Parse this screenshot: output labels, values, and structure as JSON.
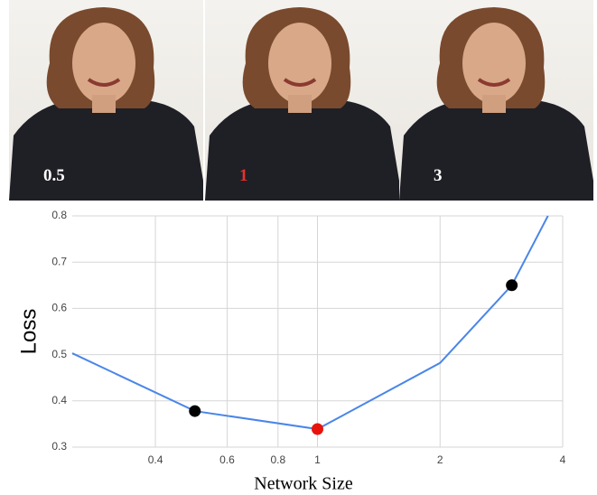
{
  "panels": [
    {
      "label": "0.5",
      "color": "#ffffff"
    },
    {
      "label": "1",
      "color": "#e8302a"
    },
    {
      "label": "3",
      "color": "#ffffff"
    }
  ],
  "chart_data": {
    "type": "line",
    "x_label": "Network Size",
    "y_label": "Loss",
    "x": [
      0.25,
      0.5,
      1,
      2,
      3,
      3.68
    ],
    "values": [
      0.503,
      0.378,
      0.339,
      0.482,
      0.65,
      0.8
    ],
    "color": "#4a86e8",
    "markers": {
      "x": [
        0.5,
        1,
        3
      ],
      "values": [
        0.378,
        0.339,
        0.65
      ],
      "colors": [
        "#000000",
        "#e8140c",
        "#000000"
      ]
    },
    "x_log": true,
    "xlim": [
      0.25,
      4
    ],
    "xticks": [
      0.4,
      0.6,
      0.8,
      1,
      2,
      4
    ],
    "ylim": [
      0.3,
      0.8
    ],
    "yticks": [
      0.3,
      0.4,
      0.5,
      0.6,
      0.7,
      0.8
    ],
    "grid": true
  }
}
